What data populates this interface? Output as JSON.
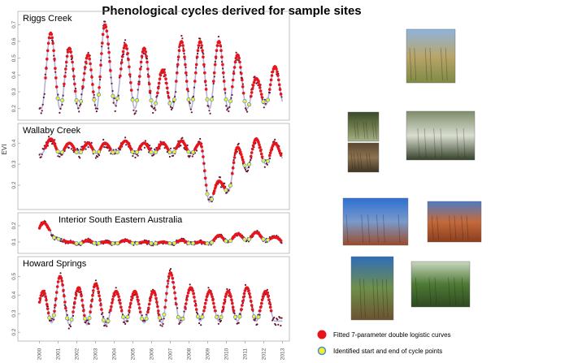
{
  "title": "Phenological cycles derived for sample sites",
  "colors": {
    "fitted_point": "#e8141c",
    "obs_point": "#6b1532",
    "cycle_fill": "#f5ee2a",
    "cycle_stroke": "#4a8fd8",
    "smooth_line": "#b3b3d9"
  },
  "legend": {
    "fitted_label": "Fitted 7-parameter double logistic curves",
    "cycle_label": "Identified start and end of cycle points"
  },
  "chart_data": [
    {
      "type": "scatter",
      "site": "Riggs Creek",
      "ylabel": "EVI",
      "yticks": [
        0.2,
        0.3,
        0.4,
        0.5,
        0.6,
        0.7
      ],
      "ylim": [
        0.15,
        0.75
      ],
      "x_years": [
        2000,
        2001,
        2002,
        2003,
        2004,
        2005,
        2006,
        2007,
        2008,
        2009,
        2010,
        2011,
        2012,
        2013
      ],
      "peaks": [
        2000.6,
        2001.6,
        2002.6,
        2003.5,
        2004.6,
        2005.6,
        2006.6,
        2007.6,
        2008.6,
        2009.6,
        2010.6,
        2011.6,
        2012.6
      ],
      "peak_values": [
        0.65,
        0.56,
        0.52,
        0.7,
        0.58,
        0.56,
        0.43,
        0.6,
        0.6,
        0.6,
        0.52,
        0.38,
        0.45
      ],
      "trough_values": [
        0.2,
        0.2,
        0.2,
        0.22,
        0.2,
        0.2,
        0.2,
        0.2,
        0.2,
        0.2,
        0.2,
        0.22,
        0.22
      ]
    },
    {
      "type": "scatter",
      "site": "Wallaby Creek",
      "yticks": [
        0.2,
        0.3,
        0.4
      ],
      "ylim": [
        0.1,
        0.47
      ],
      "x_years": [
        2000,
        2001,
        2002,
        2003,
        2004,
        2005,
        2006,
        2007,
        2008,
        2009,
        2010,
        2011,
        2012,
        2013
      ],
      "peaks": [
        2000.6,
        2001.6,
        2002.6,
        2003.5,
        2004.6,
        2005.6,
        2006.6,
        2007.6,
        2008.6,
        2009.6,
        2010.6,
        2011.6,
        2012.6
      ],
      "peak_values": [
        0.42,
        0.4,
        0.4,
        0.4,
        0.41,
        0.4,
        0.4,
        0.41,
        0.4,
        0.22,
        0.38,
        0.42,
        0.4
      ],
      "trough_values": [
        0.35,
        0.35,
        0.35,
        0.35,
        0.35,
        0.35,
        0.35,
        0.35,
        0.12,
        0.17,
        0.28,
        0.3,
        0.32
      ]
    },
    {
      "type": "scatter",
      "site": "Interior South Eastern Australia",
      "yticks": [
        0.1,
        0.2
      ],
      "ylim": [
        0.05,
        0.25
      ],
      "x_years": [
        2000,
        2001,
        2002,
        2003,
        2004,
        2005,
        2006,
        2007,
        2008,
        2009,
        2010,
        2011,
        2012,
        2013
      ],
      "peaks": [
        2000.2,
        2001.6,
        2002.6,
        2003.5,
        2004.6,
        2005.6,
        2006.6,
        2007.6,
        2008.6,
        2009.6,
        2010.6,
        2011.6,
        2012.6
      ],
      "peak_values": [
        0.22,
        0.1,
        0.11,
        0.1,
        0.11,
        0.1,
        0.1,
        0.11,
        0.1,
        0.14,
        0.15,
        0.16,
        0.13
      ],
      "trough_values": [
        0.12,
        0.09,
        0.09,
        0.09,
        0.09,
        0.09,
        0.09,
        0.09,
        0.09,
        0.1,
        0.11,
        0.11,
        0.1
      ]
    },
    {
      "type": "scatter",
      "site": "Howard Springs",
      "yticks": [
        0.2,
        0.3,
        0.4,
        0.5
      ],
      "ylim": [
        0.17,
        0.58
      ],
      "x_years": [
        2000,
        2001,
        2002,
        2003,
        2004,
        2005,
        2006,
        2007,
        2008,
        2009,
        2010,
        2011,
        2012,
        2013
      ],
      "x_tick_labels": [
        "2000",
        "2001",
        "2002",
        "2003",
        "2004",
        "2005",
        "2006",
        "2007",
        "2008",
        "2009",
        "2010",
        "2011",
        "2012",
        "2013"
      ],
      "peaks": [
        2000.2,
        2001.1,
        2002.1,
        2003.0,
        2004.1,
        2005.1,
        2006.1,
        2007.0,
        2008.1,
        2009.1,
        2010.1,
        2011.1,
        2012.1
      ],
      "peak_values": [
        0.42,
        0.5,
        0.44,
        0.46,
        0.42,
        0.42,
        0.42,
        0.52,
        0.44,
        0.42,
        0.42,
        0.44,
        0.42
      ],
      "trough_values": [
        0.25,
        0.24,
        0.24,
        0.24,
        0.26,
        0.25,
        0.25,
        0.25,
        0.26,
        0.26,
        0.26,
        0.26,
        0.26
      ]
    }
  ],
  "photos": [
    {
      "name": "riggs-creek-site-photo",
      "colors": [
        "#8fb3dc",
        "#b9a66b",
        "#7f8a45"
      ]
    },
    {
      "name": "wallaby-creek-canopy-photo",
      "colors": [
        "#3b4a2a",
        "#6f7d4c",
        "#a8b28a"
      ]
    },
    {
      "name": "wallaby-creek-ground-photo",
      "colors": [
        "#5a4630",
        "#8c7350",
        "#3f3323"
      ]
    },
    {
      "name": "wallaby-creek-forest-photo",
      "colors": [
        "#7e8c6a",
        "#d9ddd0",
        "#34412a"
      ]
    },
    {
      "name": "interior-se-australia-photo-1",
      "colors": [
        "#2d6fd1",
        "#7a9acb",
        "#9a4a2a"
      ]
    },
    {
      "name": "interior-se-australia-photo-2",
      "colors": [
        "#4e7bc2",
        "#c46a3c",
        "#8a3e1e"
      ]
    },
    {
      "name": "howard-springs-photo-1",
      "colors": [
        "#2f6db8",
        "#6f8f4a",
        "#6a5330"
      ]
    },
    {
      "name": "howard-springs-photo-2",
      "colors": [
        "#c9d6c0",
        "#4f7a36",
        "#2d4a1f"
      ]
    }
  ]
}
